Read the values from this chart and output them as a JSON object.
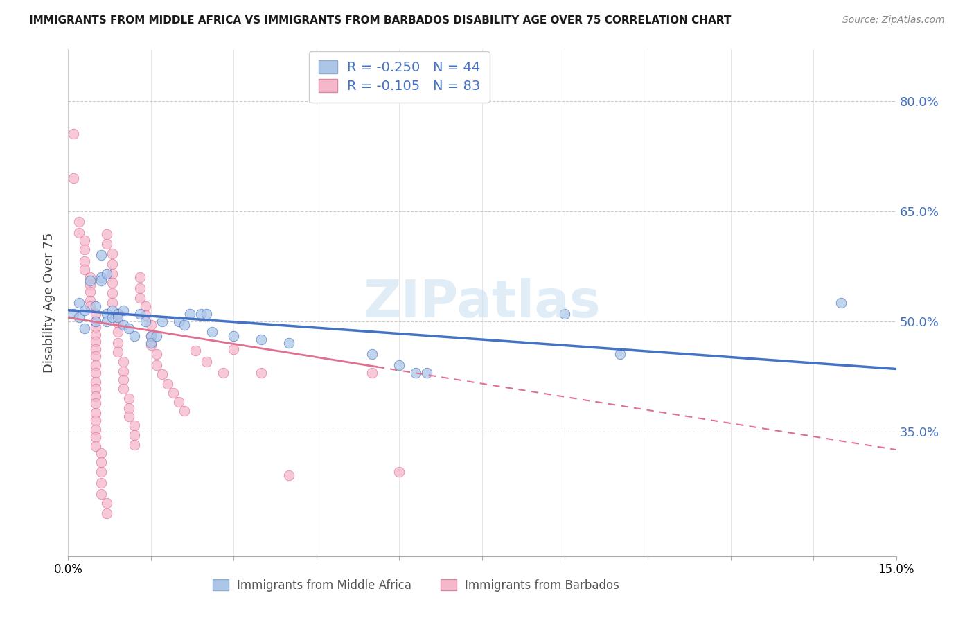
{
  "title": "IMMIGRANTS FROM MIDDLE AFRICA VS IMMIGRANTS FROM BARBADOS DISABILITY AGE OVER 75 CORRELATION CHART",
  "source": "Source: ZipAtlas.com",
  "ylabel": "Disability Age Over 75",
  "legend_label1": "Immigrants from Middle Africa",
  "legend_label2": "Immigrants from Barbados",
  "R1": -0.25,
  "N1": 44,
  "R2": -0.105,
  "N2": 83,
  "xmin": 0.0,
  "xmax": 0.15,
  "ymin": 0.18,
  "ymax": 0.87,
  "yticks": [
    0.35,
    0.5,
    0.65,
    0.8
  ],
  "ytick_labels": [
    "35.0%",
    "50.0%",
    "65.0%",
    "80.0%"
  ],
  "xticks": [
    0.0,
    0.015,
    0.03,
    0.045,
    0.06,
    0.075,
    0.09,
    0.105,
    0.12,
    0.135,
    0.15
  ],
  "xtick_labels": [
    "0.0%",
    "",
    "",
    "",
    "",
    "",
    "",
    "",
    "",
    "",
    "15.0%"
  ],
  "color_blue": "#adc6e8",
  "color_pink": "#f5b8cb",
  "line_color_blue": "#4472c4",
  "line_color_pink": "#e07090",
  "watermark": "ZIPatlas",
  "blue_scatter": [
    [
      0.001,
      0.51
    ],
    [
      0.002,
      0.505
    ],
    [
      0.002,
      0.525
    ],
    [
      0.003,
      0.515
    ],
    [
      0.003,
      0.49
    ],
    [
      0.004,
      0.555
    ],
    [
      0.005,
      0.52
    ],
    [
      0.005,
      0.5
    ],
    [
      0.006,
      0.59
    ],
    [
      0.006,
      0.56
    ],
    [
      0.006,
      0.555
    ],
    [
      0.007,
      0.565
    ],
    [
      0.007,
      0.51
    ],
    [
      0.007,
      0.5
    ],
    [
      0.008,
      0.515
    ],
    [
      0.008,
      0.505
    ],
    [
      0.009,
      0.51
    ],
    [
      0.009,
      0.505
    ],
    [
      0.01,
      0.515
    ],
    [
      0.01,
      0.495
    ],
    [
      0.011,
      0.49
    ],
    [
      0.012,
      0.48
    ],
    [
      0.013,
      0.51
    ],
    [
      0.014,
      0.5
    ],
    [
      0.015,
      0.48
    ],
    [
      0.015,
      0.47
    ],
    [
      0.016,
      0.48
    ],
    [
      0.017,
      0.5
    ],
    [
      0.02,
      0.5
    ],
    [
      0.021,
      0.495
    ],
    [
      0.022,
      0.51
    ],
    [
      0.024,
      0.51
    ],
    [
      0.025,
      0.51
    ],
    [
      0.026,
      0.485
    ],
    [
      0.03,
      0.48
    ],
    [
      0.035,
      0.475
    ],
    [
      0.04,
      0.47
    ],
    [
      0.055,
      0.455
    ],
    [
      0.06,
      0.44
    ],
    [
      0.063,
      0.43
    ],
    [
      0.065,
      0.43
    ],
    [
      0.09,
      0.51
    ],
    [
      0.1,
      0.455
    ],
    [
      0.14,
      0.525
    ]
  ],
  "pink_scatter": [
    [
      0.001,
      0.755
    ],
    [
      0.001,
      0.695
    ],
    [
      0.002,
      0.635
    ],
    [
      0.002,
      0.62
    ],
    [
      0.003,
      0.61
    ],
    [
      0.003,
      0.598
    ],
    [
      0.003,
      0.582
    ],
    [
      0.003,
      0.57
    ],
    [
      0.004,
      0.56
    ],
    [
      0.004,
      0.55
    ],
    [
      0.004,
      0.54
    ],
    [
      0.004,
      0.528
    ],
    [
      0.004,
      0.52
    ],
    [
      0.005,
      0.51
    ],
    [
      0.005,
      0.5
    ],
    [
      0.005,
      0.492
    ],
    [
      0.005,
      0.482
    ],
    [
      0.005,
      0.472
    ],
    [
      0.005,
      0.462
    ],
    [
      0.005,
      0.452
    ],
    [
      0.005,
      0.44
    ],
    [
      0.005,
      0.43
    ],
    [
      0.005,
      0.418
    ],
    [
      0.005,
      0.408
    ],
    [
      0.005,
      0.398
    ],
    [
      0.005,
      0.388
    ],
    [
      0.005,
      0.375
    ],
    [
      0.005,
      0.365
    ],
    [
      0.005,
      0.352
    ],
    [
      0.005,
      0.342
    ],
    [
      0.005,
      0.33
    ],
    [
      0.006,
      0.32
    ],
    [
      0.006,
      0.308
    ],
    [
      0.006,
      0.295
    ],
    [
      0.006,
      0.28
    ],
    [
      0.006,
      0.265
    ],
    [
      0.007,
      0.252
    ],
    [
      0.007,
      0.238
    ],
    [
      0.007,
      0.618
    ],
    [
      0.007,
      0.605
    ],
    [
      0.008,
      0.592
    ],
    [
      0.008,
      0.578
    ],
    [
      0.008,
      0.565
    ],
    [
      0.008,
      0.552
    ],
    [
      0.008,
      0.538
    ],
    [
      0.008,
      0.525
    ],
    [
      0.009,
      0.51
    ],
    [
      0.009,
      0.498
    ],
    [
      0.009,
      0.485
    ],
    [
      0.009,
      0.47
    ],
    [
      0.009,
      0.458
    ],
    [
      0.01,
      0.445
    ],
    [
      0.01,
      0.432
    ],
    [
      0.01,
      0.42
    ],
    [
      0.01,
      0.408
    ],
    [
      0.011,
      0.395
    ],
    [
      0.011,
      0.382
    ],
    [
      0.011,
      0.37
    ],
    [
      0.012,
      0.358
    ],
    [
      0.012,
      0.345
    ],
    [
      0.012,
      0.332
    ],
    [
      0.013,
      0.56
    ],
    [
      0.013,
      0.545
    ],
    [
      0.013,
      0.532
    ],
    [
      0.014,
      0.52
    ],
    [
      0.014,
      0.508
    ],
    [
      0.015,
      0.495
    ],
    [
      0.015,
      0.48
    ],
    [
      0.015,
      0.468
    ],
    [
      0.016,
      0.455
    ],
    [
      0.016,
      0.44
    ],
    [
      0.017,
      0.428
    ],
    [
      0.018,
      0.415
    ],
    [
      0.019,
      0.402
    ],
    [
      0.02,
      0.39
    ],
    [
      0.021,
      0.378
    ],
    [
      0.023,
      0.46
    ],
    [
      0.025,
      0.445
    ],
    [
      0.028,
      0.43
    ],
    [
      0.03,
      0.462
    ],
    [
      0.035,
      0.43
    ],
    [
      0.04,
      0.29
    ],
    [
      0.055,
      0.43
    ],
    [
      0.06,
      0.295
    ]
  ]
}
